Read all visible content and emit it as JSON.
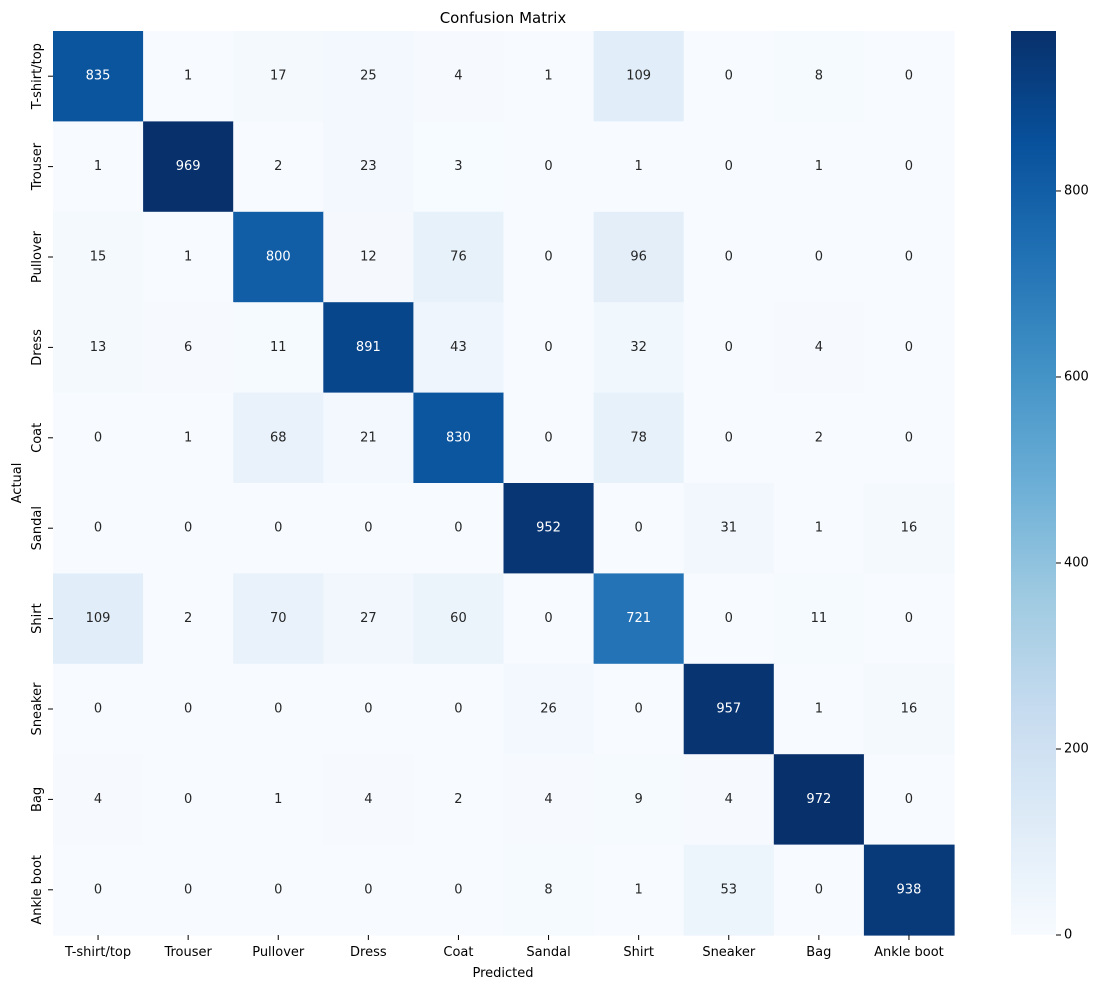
{
  "chart_data": {
    "type": "heatmap",
    "title": "Confusion Matrix",
    "xlabel": "Predicted",
    "ylabel": "Actual",
    "x_categories": [
      "T-shirt/top",
      "Trouser",
      "Pullover",
      "Dress",
      "Coat",
      "Sandal",
      "Shirt",
      "Sneaker",
      "Bag",
      "Ankle boot"
    ],
    "y_categories": [
      "T-shirt/top",
      "Trouser",
      "Pullover",
      "Dress",
      "Coat",
      "Sandal",
      "Shirt",
      "Sneaker",
      "Bag",
      "Ankle boot"
    ],
    "values": [
      [
        835,
        1,
        17,
        25,
        4,
        1,
        109,
        0,
        8,
        0
      ],
      [
        1,
        969,
        2,
        23,
        3,
        0,
        1,
        0,
        1,
        0
      ],
      [
        15,
        1,
        800,
        12,
        76,
        0,
        96,
        0,
        0,
        0
      ],
      [
        13,
        6,
        11,
        891,
        43,
        0,
        32,
        0,
        4,
        0
      ],
      [
        0,
        1,
        68,
        21,
        830,
        0,
        78,
        0,
        2,
        0
      ],
      [
        0,
        0,
        0,
        0,
        0,
        952,
        0,
        31,
        1,
        16
      ],
      [
        109,
        2,
        70,
        27,
        60,
        0,
        721,
        0,
        11,
        0
      ],
      [
        0,
        0,
        0,
        0,
        0,
        26,
        0,
        957,
        1,
        16
      ],
      [
        4,
        0,
        1,
        4,
        2,
        4,
        9,
        4,
        972,
        0
      ],
      [
        0,
        0,
        0,
        0,
        0,
        8,
        1,
        53,
        0,
        938
      ]
    ],
    "colormap": "Blues",
    "color_range": [
      0,
      972
    ],
    "colorbar_ticks": [
      0,
      200,
      400,
      600,
      800
    ],
    "grid": false
  }
}
